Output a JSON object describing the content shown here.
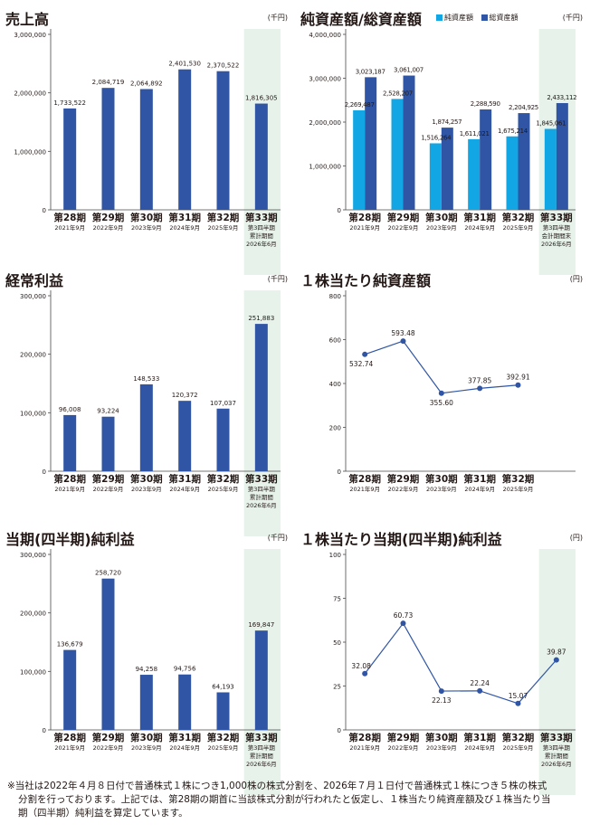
{
  "colors": {
    "bar": "#2f55a4",
    "bar_light": "#12a6e5",
    "highlight": "#e6f2ea",
    "axis": "#4a4a4a",
    "grid": "#c8c8c8"
  },
  "panels": [
    {
      "title": "売上高",
      "unit": "(千円)"
    },
    {
      "title": "純資産額/総資産額",
      "unit": "(千円)",
      "legend": [
        "純資産額",
        "総資産額"
      ]
    },
    {
      "title": "経常利益",
      "unit": "(千円)"
    },
    {
      "title": "１株当たり純資産額",
      "unit": "(円)"
    },
    {
      "title": "当期(四半期)純利益",
      "unit": "(千円)"
    },
    {
      "title": "１株当たり当期(四半期)純利益",
      "unit": "(円)"
    }
  ],
  "chart_data": [
    {
      "type": "bar",
      "title": "売上高",
      "unit": "(千円)",
      "categories": [
        {
          "period": "第28期",
          "sub": [
            "2021年9月"
          ]
        },
        {
          "period": "第29期",
          "sub": [
            "2022年9月"
          ]
        },
        {
          "period": "第30期",
          "sub": [
            "2023年9月"
          ]
        },
        {
          "period": "第31期",
          "sub": [
            "2024年9月"
          ]
        },
        {
          "period": "第32期",
          "sub": [
            "2025年9月"
          ]
        },
        {
          "period": "第33期",
          "sub": [
            "第3四半期",
            "累計期間",
            "2026年6月"
          ]
        }
      ],
      "values": [
        1733522,
        2084719,
        2064892,
        2401530,
        2370522,
        1816305
      ],
      "labels": [
        "1,733,522",
        "2,084,719",
        "2,064,892",
        "2,401,530",
        "2,370,522",
        "1,816,305"
      ],
      "ylim": [
        0,
        3000000
      ],
      "yticks": [
        0,
        1000000,
        2000000,
        3000000
      ],
      "ytick_labels": [
        "0",
        "1,000,000",
        "2,000,000",
        "3,000,000"
      ],
      "highlight_last": true
    },
    {
      "type": "bar",
      "title": "純資産額/総資産額",
      "unit": "(千円)",
      "categories": [
        {
          "period": "第28期",
          "sub": [
            "2021年9月"
          ]
        },
        {
          "period": "第29期",
          "sub": [
            "2022年9月"
          ]
        },
        {
          "period": "第30期",
          "sub": [
            "2023年9月"
          ]
        },
        {
          "period": "第31期",
          "sub": [
            "2024年9月"
          ]
        },
        {
          "period": "第32期",
          "sub": [
            "2025年9月"
          ]
        },
        {
          "period": "第33期",
          "sub": [
            "第3四半期",
            "会計期間末",
            "2026年6月"
          ]
        }
      ],
      "series": [
        {
          "name": "純資産額",
          "values": [
            2269487,
            2528207,
            1516264,
            1611021,
            1675214,
            1845061
          ],
          "labels": [
            "2,269,487",
            "2,528,207",
            "1,516,264",
            "1,611,021",
            "1,675,214",
            "1,845,061"
          ]
        },
        {
          "name": "総資産額",
          "values": [
            3023187,
            3061007,
            1874257,
            2288590,
            2204925,
            2433112
          ],
          "labels": [
            "3,023,187",
            "3,061,007",
            "1,874,257",
            "2,288,590",
            "2,204,925",
            "2,433,112"
          ]
        }
      ],
      "ylim": [
        0,
        4000000
      ],
      "yticks": [
        0,
        1000000,
        2000000,
        3000000,
        4000000
      ],
      "ytick_labels": [
        "0",
        "1,000,000",
        "2,000,000",
        "3,000,000",
        "4,000,000"
      ],
      "highlight_last": true
    },
    {
      "type": "bar",
      "title": "経常利益",
      "unit": "(千円)",
      "categories": [
        {
          "period": "第28期",
          "sub": [
            "2021年9月"
          ]
        },
        {
          "period": "第29期",
          "sub": [
            "2022年9月"
          ]
        },
        {
          "period": "第30期",
          "sub": [
            "2023年9月"
          ]
        },
        {
          "period": "第31期",
          "sub": [
            "2024年9月"
          ]
        },
        {
          "period": "第32期",
          "sub": [
            "2025年9月"
          ]
        },
        {
          "period": "第33期",
          "sub": [
            "第3四半期",
            "累計期間",
            "2026年6月"
          ]
        }
      ],
      "values": [
        96008,
        93224,
        148533,
        120372,
        107037,
        251883
      ],
      "labels": [
        "96,008",
        "93,224",
        "148,533",
        "120,372",
        "107,037",
        "251,883"
      ],
      "ylim": [
        0,
        300000
      ],
      "yticks": [
        0,
        100000,
        200000,
        300000
      ],
      "ytick_labels": [
        "0",
        "100,000",
        "200,000",
        "300,000"
      ],
      "highlight_last": true
    },
    {
      "type": "line",
      "title": "１株当たり純資産額",
      "unit": "(円)",
      "categories": [
        {
          "period": "第28期",
          "sub": [
            "2021年9月"
          ]
        },
        {
          "period": "第29期",
          "sub": [
            "2022年9月"
          ]
        },
        {
          "period": "第30期",
          "sub": [
            "2023年9月"
          ]
        },
        {
          "period": "第31期",
          "sub": [
            "2024年9月"
          ]
        },
        {
          "period": "第32期",
          "sub": [
            "2025年9月"
          ]
        }
      ],
      "slots": 6,
      "values": [
        532.74,
        593.48,
        355.6,
        377.85,
        392.91
      ],
      "labels": [
        "532.74",
        "593.48",
        "355.60",
        "377.85",
        "392.91"
      ],
      "label_pos": [
        "below",
        "above",
        "below",
        "above",
        "above"
      ],
      "ylim": [
        0,
        800
      ],
      "yticks": [
        0,
        200,
        400,
        600,
        800
      ],
      "ytick_labels": [
        "0",
        "200",
        "400",
        "600",
        "800"
      ],
      "highlight_last": false
    },
    {
      "type": "bar",
      "title": "当期(四半期)純利益",
      "unit": "(千円)",
      "categories": [
        {
          "period": "第28期",
          "sub": [
            "2021年9月"
          ]
        },
        {
          "period": "第29期",
          "sub": [
            "2022年9月"
          ]
        },
        {
          "period": "第30期",
          "sub": [
            "2023年9月"
          ]
        },
        {
          "period": "第31期",
          "sub": [
            "2024年9月"
          ]
        },
        {
          "period": "第32期",
          "sub": [
            "2025年9月"
          ]
        },
        {
          "period": "第33期",
          "sub": [
            "第3四半期",
            "累計期間",
            "2026年6月"
          ]
        }
      ],
      "values": [
        136679,
        258720,
        94258,
        94756,
        64193,
        169847
      ],
      "labels": [
        "136,679",
        "258,720",
        "94,258",
        "94,756",
        "64,193",
        "169,847"
      ],
      "ylim": [
        0,
        300000
      ],
      "yticks": [
        0,
        100000,
        200000,
        300000
      ],
      "ytick_labels": [
        "0",
        "100,000",
        "200,000",
        "300,000"
      ],
      "highlight_last": true
    },
    {
      "type": "line",
      "title": "１株当たり当期(四半期)純利益",
      "unit": "(円)",
      "categories": [
        {
          "period": "第28期",
          "sub": [
            "2021年9月"
          ]
        },
        {
          "period": "第29期",
          "sub": [
            "2022年9月"
          ]
        },
        {
          "period": "第30期",
          "sub": [
            "2023年9月"
          ]
        },
        {
          "period": "第31期",
          "sub": [
            "2024年9月"
          ]
        },
        {
          "period": "第32期",
          "sub": [
            "2025年9月"
          ]
        },
        {
          "period": "第33期",
          "sub": [
            "第3四半期",
            "累計期間",
            "2026年6月"
          ]
        }
      ],
      "slots": 6,
      "values": [
        32.08,
        60.73,
        22.13,
        22.24,
        15.07,
        39.87
      ],
      "labels": [
        "32.08",
        "60.73",
        "22.13",
        "22.24",
        "15.07",
        "39.87"
      ],
      "label_pos": [
        "above",
        "above",
        "below",
        "above",
        "above",
        "above"
      ],
      "ylim": [
        0,
        100
      ],
      "yticks": [
        0,
        25,
        50,
        75,
        100
      ],
      "ytick_labels": [
        "0",
        "25",
        "50",
        "75",
        "100"
      ],
      "highlight_last": true
    }
  ],
  "footnote": {
    "line1": "※当社は2022年４月８日付で普通株式１株につき1,000株の株式分割を、2026年７月１日付で普通株式１株につき５株の株式",
    "line2": "分割を行っております。上記では、第28期の期首に当該株式分割が行われたと仮定し、１株当たり純資産額及び１株当たり当",
    "line3": "期（四半期）純利益を算定しています。"
  }
}
